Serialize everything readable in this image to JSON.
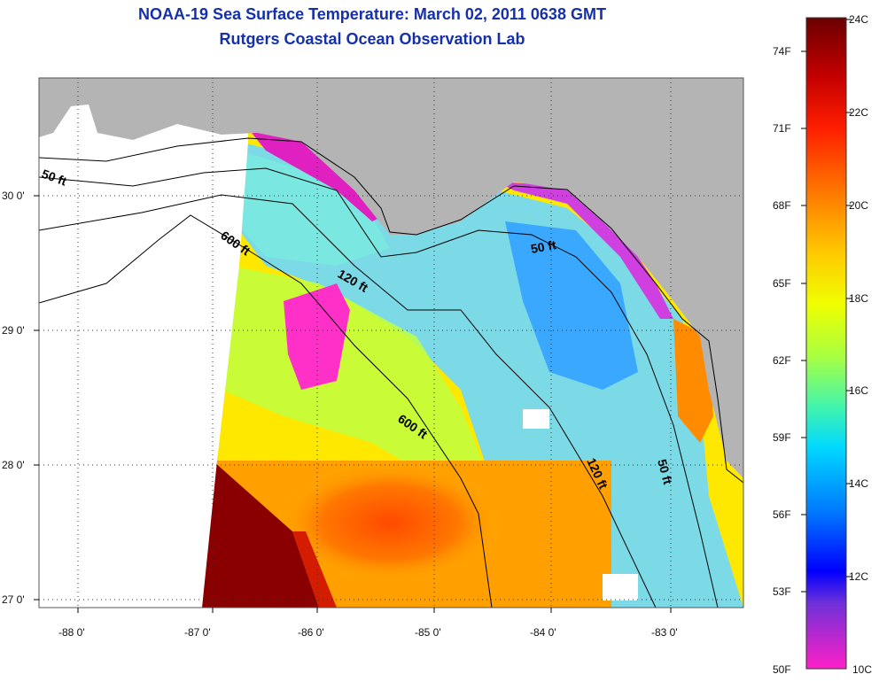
{
  "title": {
    "line1": "NOAA-19 Sea Surface Temperature:  March 02, 2011 0638 GMT",
    "line2": "Rutgers Coastal Ocean Observation Lab"
  },
  "map": {
    "lat_labels": [
      "30 0'",
      "29 0'",
      "28 0'",
      "27 0'"
    ],
    "lon_labels": [
      "-88 0'",
      "-87 0'",
      "-86 0'",
      "-85 0'",
      "-84 0'",
      "-83 0'"
    ],
    "contours": [
      "50 ft",
      "600 ft",
      "120 ft",
      "50 ft",
      "600 ft",
      "120 ft",
      "50 ft"
    ],
    "colors": {
      "land": "#b4b4b4",
      "nodata": "#ffffff",
      "grid": "#333333"
    }
  },
  "colorbar": {
    "fahrenheit": [
      "74F",
      "71F",
      "68F",
      "65F",
      "62F",
      "59F",
      "56F",
      "53F",
      "50F"
    ],
    "celsius": [
      "24C",
      "22C",
      "20C",
      "18C",
      "16C",
      "14C",
      "12C",
      "10C"
    ],
    "stops": [
      "#7a0000",
      "#d40000",
      "#ff3000",
      "#ff8a00",
      "#ffd000",
      "#e6ff00",
      "#8aff4a",
      "#24f0c8",
      "#00c8ff",
      "#0070ff",
      "#0000ff",
      "#7a2fd8",
      "#ff20c8"
    ]
  }
}
